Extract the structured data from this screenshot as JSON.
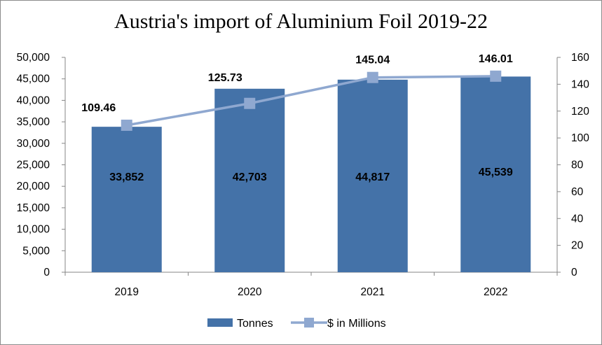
{
  "chart_data": {
    "type": "bar",
    "title": "Austria's import of Aluminium  Foil 2019-22",
    "categories": [
      "2019",
      "2020",
      "2021",
      "2022"
    ],
    "series": [
      {
        "name": "Tonnes",
        "type": "bar",
        "axis": "left",
        "values": [
          33852,
          42703,
          44817,
          45539
        ],
        "labels": [
          "33,852",
          "42,703",
          "44,817",
          "45,539"
        ],
        "color": "#4472a8"
      },
      {
        "name": "$ in Millions",
        "type": "line",
        "axis": "right",
        "values": [
          109.46,
          125.73,
          145.04,
          146.01
        ],
        "labels": [
          "109.46",
          "125.73",
          "145.04",
          "146.01"
        ],
        "color": "#8fa8d0",
        "marker": "square"
      }
    ],
    "y_left": {
      "ylim": [
        0,
        50000
      ],
      "ticks": [
        "0",
        "5,000",
        "10,000",
        "15,000",
        "20,000",
        "25,000",
        "30,000",
        "35,000",
        "40,000",
        "45,000",
        "50,000"
      ]
    },
    "y_right": {
      "ylim": [
        0,
        160
      ],
      "ticks": [
        "0",
        "20",
        "40",
        "60",
        "80",
        "100",
        "120",
        "140",
        "160"
      ]
    },
    "grid": false,
    "legend": "bottom"
  }
}
